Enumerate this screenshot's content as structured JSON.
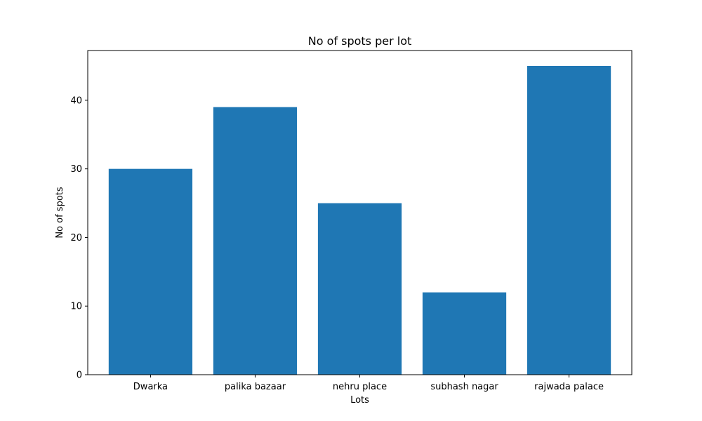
{
  "chart_data": {
    "type": "bar",
    "title": "No of spots per lot",
    "xlabel": "Lots",
    "ylabel": "No of spots",
    "categories": [
      "Dwarka",
      "palika bazaar",
      "nehru place",
      "subhash nagar",
      "rajwada palace"
    ],
    "values": [
      30,
      39,
      25,
      12,
      45
    ],
    "ylim": [
      0,
      47.25
    ],
    "yticks": [
      0,
      10,
      20,
      30,
      40
    ],
    "grid": false,
    "bar_color": "#1f77b4"
  }
}
